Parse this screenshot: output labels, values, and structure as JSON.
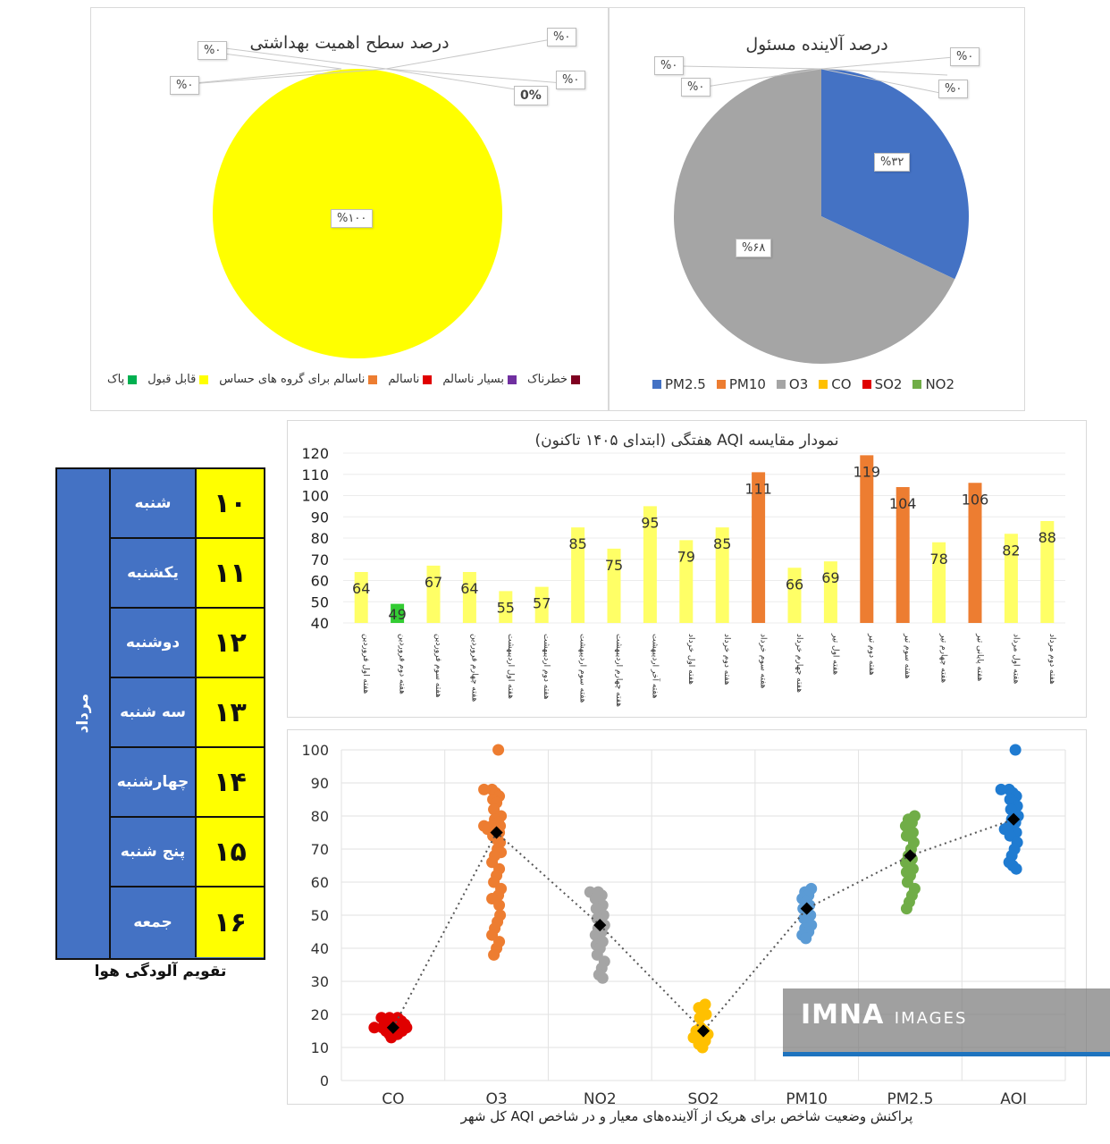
{
  "chart_data": [
    {
      "type": "pie",
      "title": "درصد سطح اهمیت بهداشتی",
      "slices": [
        {
          "label": "پاک",
          "value": 0,
          "color": "#00b050",
          "data_label": ""
        },
        {
          "label": "قابل قبول",
          "value": 100,
          "color": "#ffff00",
          "data_label": "%۱۰۰"
        },
        {
          "label": "ناسالم برای گروه های حساس",
          "value": 0,
          "color": "#ed7d31",
          "data_label": "0%"
        },
        {
          "label": "ناسالم",
          "value": 0,
          "color": "#e00000",
          "data_label": "%۰"
        },
        {
          "label": "بسیار ناسالم",
          "value": 0,
          "color": "#7030a0",
          "data_label": "%۰"
        },
        {
          "label": "خطرناک",
          "value": 0,
          "color": "#7f0020",
          "data_label": "%۰"
        }
      ],
      "extra_labels": [
        "%۰",
        "%۰"
      ],
      "legend_position": "bottom"
    },
    {
      "type": "pie",
      "title": "درصد آلاینده مسئول",
      "slices": [
        {
          "label": "PM2.5",
          "value": 32,
          "color": "#4472c4",
          "data_label": "%۳۲"
        },
        {
          "label": "PM10",
          "value": 0,
          "color": "#ed7d31",
          "data_label": "%۰"
        },
        {
          "label": "O3",
          "value": 68,
          "color": "#a5a5a5",
          "data_label": "%۶۸"
        },
        {
          "label": "CO",
          "value": 0,
          "color": "#ffc000",
          "data_label": "%۰"
        },
        {
          "label": "SO2",
          "value": 0,
          "color": "#e00000",
          "data_label": "%۰"
        },
        {
          "label": "NO2",
          "value": 0,
          "color": "#70ad47",
          "data_label": "%۰"
        }
      ],
      "legend_position": "bottom"
    },
    {
      "type": "bar",
      "title": "نمودار مقایسه AQI هفتگی (ابتدای ۱۴۰۵ تاکنون)",
      "ylim": [
        40,
        120
      ],
      "yticks": [
        40,
        50,
        60,
        70,
        80,
        90,
        100,
        110,
        120
      ],
      "categories": [
        "هفته اول فروردین",
        "هفته دوم فروردین",
        "هفته سوم فروردین",
        "هفته چهارم فروردین",
        "هفته اول اردیبهشت",
        "هفته دوم اردیبهشت",
        "هفته سوم اردیبهشت",
        "هفته چهارم اردیبهشت",
        "هفته آخر اردیبهشت",
        "هفته اول خرداد",
        "هفته دوم خرداد",
        "هفته سوم خرداد",
        "هفته چهارم خرداد",
        "هفته اول تیر",
        "هفته دوم تیر",
        "هفته سوم تیر",
        "هفته چهارم تیر",
        "هفته پایانی تیر",
        "هفته اول مرداد",
        "هفته دوم مرداد"
      ],
      "values": [
        64,
        49,
        67,
        64,
        55,
        57,
        85,
        75,
        95,
        79,
        85,
        111,
        66,
        69,
        119,
        104,
        78,
        106,
        82,
        88
      ],
      "colors": [
        "#ffff66",
        "#33cc33",
        "#ffff66",
        "#ffff66",
        "#ffff66",
        "#ffff66",
        "#ffff66",
        "#ffff66",
        "#ffff66",
        "#ffff66",
        "#ffff66",
        "#ed7d31",
        "#ffff66",
        "#ffff66",
        "#ed7d31",
        "#ed7d31",
        "#ffff66",
        "#ed7d31",
        "#ffff66",
        "#ffff66"
      ]
    },
    {
      "type": "scatter",
      "title": "",
      "caption": "پراکنش وضعیت شاخص برای هریک از آلاینده‌های معیار و در شاخص AQI کل شهر",
      "ylim": [
        0,
        100
      ],
      "yticks": [
        0,
        10,
        20,
        30,
        40,
        50,
        60,
        70,
        80,
        90,
        100
      ],
      "grid": true,
      "categories": [
        "CO",
        "O3",
        "NO2",
        "SO2",
        "PM10",
        "PM2.5",
        "AQI"
      ],
      "series": [
        {
          "category": "CO",
          "color": "#e00000",
          "mean": 16,
          "points": [
            14,
            15,
            15,
            16,
            16,
            16,
            17,
            17,
            18,
            18,
            19,
            19,
            15,
            16,
            17,
            14,
            13,
            18,
            19,
            16
          ]
        },
        {
          "category": "O3",
          "color": "#ed7d31",
          "mean": 75,
          "points": [
            100,
            88,
            88,
            87,
            86,
            85,
            84,
            82,
            80,
            79,
            78,
            77,
            77,
            77,
            76,
            76,
            75,
            74,
            73,
            72,
            70,
            69,
            68,
            66,
            64,
            62,
            60,
            58,
            56,
            55,
            53,
            50,
            48,
            46,
            44,
            42,
            40,
            38
          ]
        },
        {
          "category": "NO2",
          "color": "#a5a5a5",
          "mean": 47,
          "points": [
            57,
            57,
            56,
            55,
            54,
            53,
            52,
            51,
            50,
            49,
            48,
            47,
            46,
            45,
            44,
            43,
            42,
            41,
            40,
            38,
            36,
            34,
            32,
            31
          ]
        },
        {
          "category": "SO2",
          "color": "#ffc000",
          "mean": 15,
          "points": [
            23,
            22,
            21,
            20,
            19,
            16,
            15,
            14,
            13,
            12,
            11,
            10,
            14,
            15,
            13
          ]
        },
        {
          "category": "PM10",
          "color": "#5b9bd5",
          "mean": 52,
          "points": [
            58,
            57,
            56,
            55,
            54,
            53,
            52,
            51,
            50,
            49,
            48,
            47,
            46,
            45,
            44,
            43
          ]
        },
        {
          "category": "PM2.5",
          "color": "#70ad47",
          "mean": 68,
          "points": [
            80,
            79,
            78,
            77,
            76,
            75,
            74,
            72,
            70,
            68,
            67,
            66,
            65,
            64,
            63,
            62,
            60,
            58,
            56,
            54,
            52
          ]
        },
        {
          "category": "AQI",
          "color": "#1f7bd1",
          "mean": 79,
          "points": [
            100,
            88,
            88,
            87,
            86,
            85,
            84,
            83,
            82,
            80,
            79,
            78,
            77,
            76,
            76,
            75,
            74,
            72,
            70,
            68,
            66,
            65,
            64
          ]
        }
      ]
    }
  ],
  "calendar": {
    "month": "مرداد",
    "rows": [
      {
        "day": "شنبه",
        "num": "۱۰"
      },
      {
        "day": "یکشنبه",
        "num": "۱۱"
      },
      {
        "day": "دوشنبه",
        "num": "۱۲"
      },
      {
        "day": "سه شنبه",
        "num": "۱۳"
      },
      {
        "day": "چهارشنبه",
        "num": "۱۴"
      },
      {
        "day": "پنج شنبه",
        "num": "۱۵"
      },
      {
        "day": "جمعه",
        "num": "۱۶"
      }
    ],
    "caption": "تقویم آلودگی هوا"
  },
  "watermark": {
    "brand": "IMNA",
    "suffix": "IMAGES"
  }
}
